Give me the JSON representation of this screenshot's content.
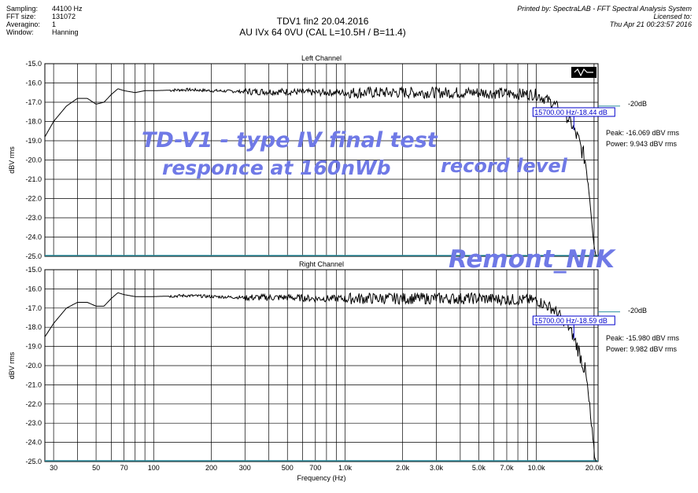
{
  "meta": {
    "rows": [
      {
        "key": "Sampling:",
        "value": "44100 Hz"
      },
      {
        "key": "FFT size:",
        "value": "131072"
      },
      {
        "key": "Averagino:",
        "value": "1"
      },
      {
        "key": "Window:",
        "value": "Hanning"
      }
    ]
  },
  "title": {
    "line1": "TDV1 fin2 20.04.2016",
    "line2": "AU IVx 64  0VU  (CAL L=10.5H / B=11.4)"
  },
  "printed": {
    "line1": "Printed by: SpectraLAB - FFT Spectral Analysis System",
    "line2": "Licensed to:",
    "line3": "Thu Apr 21 00:23:57 2016"
  },
  "overlay": {
    "line1": "TD-V1 - type IV final test",
    "line2": "responce at 160nWb",
    "line3": "record level",
    "watermark": "Remont_NIK"
  },
  "colors": {
    "trace": "#000000",
    "grid": "#000000",
    "baseline": "#2f8fa0",
    "marker_box": "#0000cc",
    "overlay_text": "#6f79e6"
  },
  "chart_data": [
    {
      "type": "line",
      "title": "Left Channel",
      "xlabel": "Frequency (Hz)",
      "ylabel": "dBV rms",
      "xscale": "log",
      "xlim": [
        27,
        21000
      ],
      "ylim": [
        -25.0,
        -15.0
      ],
      "x_ticks": [
        "30",
        "50",
        "70",
        "100",
        "200",
        "300",
        "500",
        "700",
        "1.0k",
        "2.0k",
        "3.0k",
        "5.0k",
        "7.0k",
        "10.0k",
        "20.0k"
      ],
      "x_tick_values": [
        30,
        50,
        70,
        100,
        200,
        300,
        500,
        700,
        1000,
        2000,
        3000,
        5000,
        7000,
        10000,
        20000
      ],
      "y_ticks": [
        "-15.0",
        "-16.0",
        "-17.0",
        "-18.0",
        "-19.0",
        "-20.0",
        "-21.0",
        "-22.0",
        "-23.0",
        "-24.0",
        "-25.0"
      ],
      "y_tick_values": [
        -15,
        -16,
        -17,
        -18,
        -19,
        -20,
        -21,
        -22,
        -23,
        -24,
        -25
      ],
      "grid": true,
      "reference_label": "-20dB",
      "reference_level": -17.2,
      "marker_label": "15700.00 Hz/-18.44 dB",
      "marker": {
        "x": 15700,
        "y": -18.44
      },
      "peak_label": "Peak: -16.069 dBV rms",
      "power_label": "Power: 9.943 dBV rms",
      "series": [
        {
          "x": [
            27,
            30,
            35,
            40,
            45,
            50,
            55,
            60,
            65,
            70,
            80,
            90,
            100,
            150,
            200,
            300,
            500,
            700,
            1000,
            2000,
            3000,
            5000,
            7000,
            10000,
            11000,
            12000,
            13000,
            14000,
            15000,
            15700,
            16500,
            17000,
            18000,
            18500,
            19000,
            19500,
            20000,
            20500
          ],
          "y": [
            -18.8,
            -18.0,
            -17.2,
            -16.8,
            -16.8,
            -17.1,
            -17.0,
            -16.6,
            -16.3,
            -16.4,
            -16.5,
            -16.4,
            -16.4,
            -16.35,
            -16.4,
            -16.45,
            -16.45,
            -16.5,
            -16.5,
            -16.5,
            -16.5,
            -16.5,
            -16.55,
            -16.6,
            -16.8,
            -17.0,
            -17.3,
            -17.6,
            -18.0,
            -18.44,
            -18.9,
            -19.3,
            -20.0,
            -20.8,
            -21.8,
            -23.0,
            -24.5,
            -25.0
          ]
        }
      ]
    },
    {
      "type": "line",
      "title": "Right Channel",
      "xlabel": "Frequency (Hz)",
      "ylabel": "dBV rms",
      "xscale": "log",
      "xlim": [
        27,
        21000
      ],
      "ylim": [
        -25.0,
        -15.0
      ],
      "x_ticks": [
        "30",
        "50",
        "70",
        "100",
        "200",
        "300",
        "500",
        "700",
        "1.0k",
        "2.0k",
        "3.0k",
        "5.0k",
        "7.0k",
        "10.0k",
        "20.0k"
      ],
      "x_tick_values": [
        30,
        50,
        70,
        100,
        200,
        300,
        500,
        700,
        1000,
        2000,
        3000,
        5000,
        7000,
        10000,
        20000
      ],
      "y_ticks": [
        "-15.0",
        "-16.0",
        "-17.0",
        "-18.0",
        "-19.0",
        "-20.0",
        "-21.0",
        "-22.0",
        "-23.0",
        "-24.0",
        "-25.0"
      ],
      "y_tick_values": [
        -15,
        -16,
        -17,
        -18,
        -19,
        -20,
        -21,
        -22,
        -23,
        -24,
        -25
      ],
      "grid": true,
      "reference_label": "-20dB",
      "reference_level": -17.2,
      "marker_label": "15700.00 Hz/-18.59 dB",
      "marker": {
        "x": 15700,
        "y": -18.59
      },
      "peak_label": "Peak: -15.980 dBV rms",
      "power_label": "Power: 9.982 dBV rms",
      "series": [
        {
          "x": [
            27,
            30,
            35,
            40,
            45,
            50,
            55,
            60,
            65,
            70,
            80,
            90,
            100,
            150,
            200,
            300,
            500,
            700,
            1000,
            2000,
            3000,
            5000,
            7000,
            10000,
            11000,
            12000,
            13000,
            14000,
            15000,
            15700,
            16500,
            17000,
            18000,
            18500,
            19000,
            19500,
            20000,
            20500
          ],
          "y": [
            -18.5,
            -17.8,
            -17.0,
            -16.7,
            -16.7,
            -16.9,
            -16.9,
            -16.5,
            -16.2,
            -16.3,
            -16.4,
            -16.4,
            -16.4,
            -16.35,
            -16.4,
            -16.45,
            -16.45,
            -16.5,
            -16.5,
            -16.5,
            -16.5,
            -16.5,
            -16.55,
            -16.6,
            -16.8,
            -17.0,
            -17.3,
            -17.7,
            -18.1,
            -18.59,
            -19.1,
            -19.5,
            -20.3,
            -21.2,
            -22.3,
            -23.5,
            -24.7,
            -25.0
          ]
        }
      ]
    }
  ]
}
